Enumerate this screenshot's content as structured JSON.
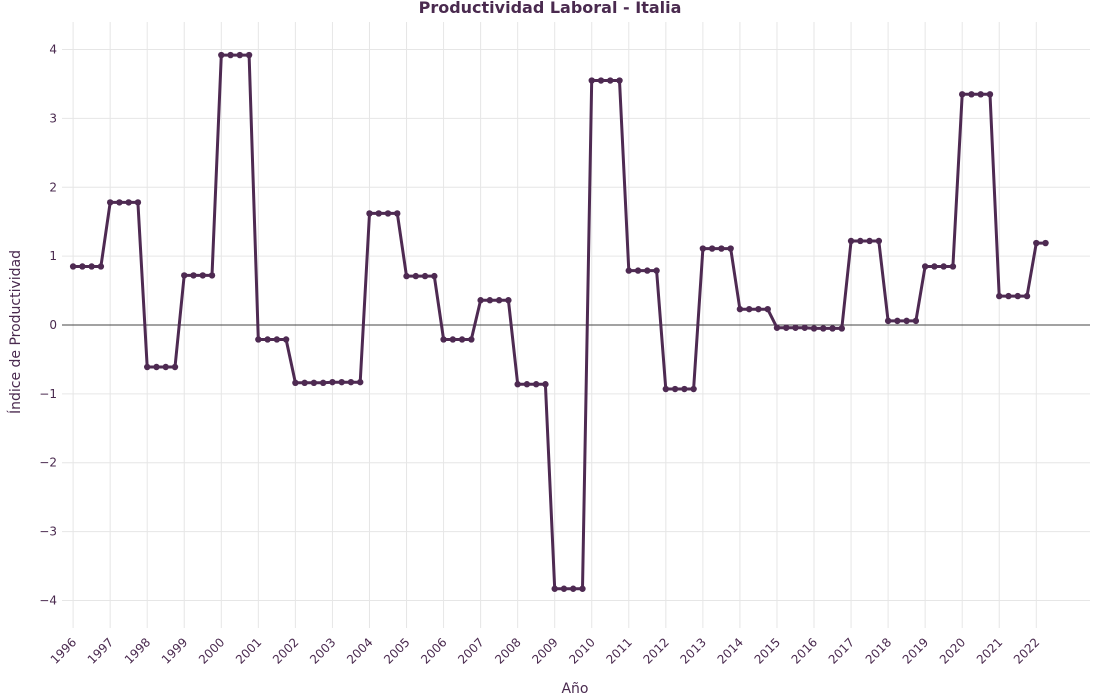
{
  "chart_data": {
    "type": "line",
    "title": "Productividad Laboral - Italia",
    "xlabel": "Año",
    "ylabel": "Índice de Productividad",
    "xlim": [
      1995.7,
      2023.45
    ],
    "ylim": [
      -4.4,
      4.4
    ],
    "yticks": [
      -4,
      -3,
      -2,
      -1,
      0,
      1,
      2,
      3,
      4
    ],
    "ytick_labels": [
      "−4",
      "−3",
      "−2",
      "−1",
      "0",
      "1",
      "2",
      "3",
      "4"
    ],
    "xticks": [
      1996,
      1997,
      1998,
      1999,
      2000,
      2001,
      2002,
      2003,
      2004,
      2005,
      2006,
      2007,
      2008,
      2009,
      2010,
      2011,
      2012,
      2013,
      2014,
      2015,
      2016,
      2017,
      2018,
      2019,
      2020,
      2021,
      2022
    ],
    "grid": true,
    "zero_line": true,
    "colors": {
      "line": "#4e2a52",
      "grid": "#e6e6e6",
      "zero_line": "#444444",
      "text": "#4a2a4f"
    },
    "series": [
      {
        "x": [
          1996.0,
          1996.25,
          1996.5,
          1996.75,
          1997.0,
          1997.25,
          1997.5,
          1997.75,
          1998.0,
          1998.25,
          1998.5,
          1998.75,
          1999.0,
          1999.25,
          1999.5,
          1999.75,
          2000.0,
          2000.25,
          2000.5,
          2000.75,
          2001.0,
          2001.25,
          2001.5,
          2001.75,
          2002.0,
          2002.25,
          2002.5,
          2002.75,
          2003.0,
          2003.25,
          2003.5,
          2003.75,
          2004.0,
          2004.25,
          2004.5,
          2004.75,
          2005.0,
          2005.25,
          2005.5,
          2005.75,
          2006.0,
          2006.25,
          2006.5,
          2006.75,
          2007.0,
          2007.25,
          2007.5,
          2007.75,
          2008.0,
          2008.25,
          2008.5,
          2008.75,
          2009.0,
          2009.25,
          2009.5,
          2009.75,
          2010.0,
          2010.25,
          2010.5,
          2010.75,
          2011.0,
          2011.25,
          2011.5,
          2011.75,
          2012.0,
          2012.25,
          2012.5,
          2012.75,
          2013.0,
          2013.25,
          2013.5,
          2013.75,
          2014.0,
          2014.25,
          2014.5,
          2014.75,
          2015.0,
          2015.25,
          2015.5,
          2015.75,
          2016.0,
          2016.25,
          2016.5,
          2016.75,
          2017.0,
          2017.25,
          2017.5,
          2017.75,
          2018.0,
          2018.25,
          2018.5,
          2018.75,
          2019.0,
          2019.25,
          2019.5,
          2019.75,
          2020.0,
          2020.25,
          2020.5,
          2020.75,
          2021.0,
          2021.25,
          2021.5,
          2021.75,
          2022.0,
          2022.25
        ],
        "y": [
          0.85,
          0.85,
          0.85,
          0.85,
          1.78,
          1.78,
          1.78,
          1.78,
          -0.61,
          -0.61,
          -0.61,
          -0.61,
          0.72,
          0.72,
          0.72,
          0.72,
          3.92,
          3.92,
          3.92,
          3.92,
          -0.21,
          -0.21,
          -0.21,
          -0.21,
          -0.84,
          -0.84,
          -0.84,
          -0.84,
          -0.83,
          -0.83,
          -0.83,
          -0.83,
          1.62,
          1.62,
          1.62,
          1.62,
          0.71,
          0.71,
          0.71,
          0.71,
          -0.21,
          -0.21,
          -0.21,
          -0.21,
          0.36,
          0.36,
          0.36,
          0.36,
          -0.86,
          -0.86,
          -0.86,
          -0.86,
          -3.83,
          -3.83,
          -3.83,
          -3.83,
          3.55,
          3.55,
          3.55,
          3.55,
          0.79,
          0.79,
          0.79,
          0.79,
          -0.93,
          -0.93,
          -0.93,
          -0.93,
          1.11,
          1.11,
          1.11,
          1.11,
          0.23,
          0.23,
          0.23,
          0.23,
          -0.04,
          -0.04,
          -0.04,
          -0.04,
          -0.05,
          -0.05,
          -0.05,
          -0.05,
          1.22,
          1.22,
          1.22,
          1.22,
          0.06,
          0.06,
          0.06,
          0.06,
          0.85,
          0.85,
          0.85,
          0.85,
          3.35,
          3.35,
          3.35,
          3.35,
          0.42,
          0.42,
          0.42,
          0.42,
          1.19,
          1.19
        ]
      }
    ]
  }
}
